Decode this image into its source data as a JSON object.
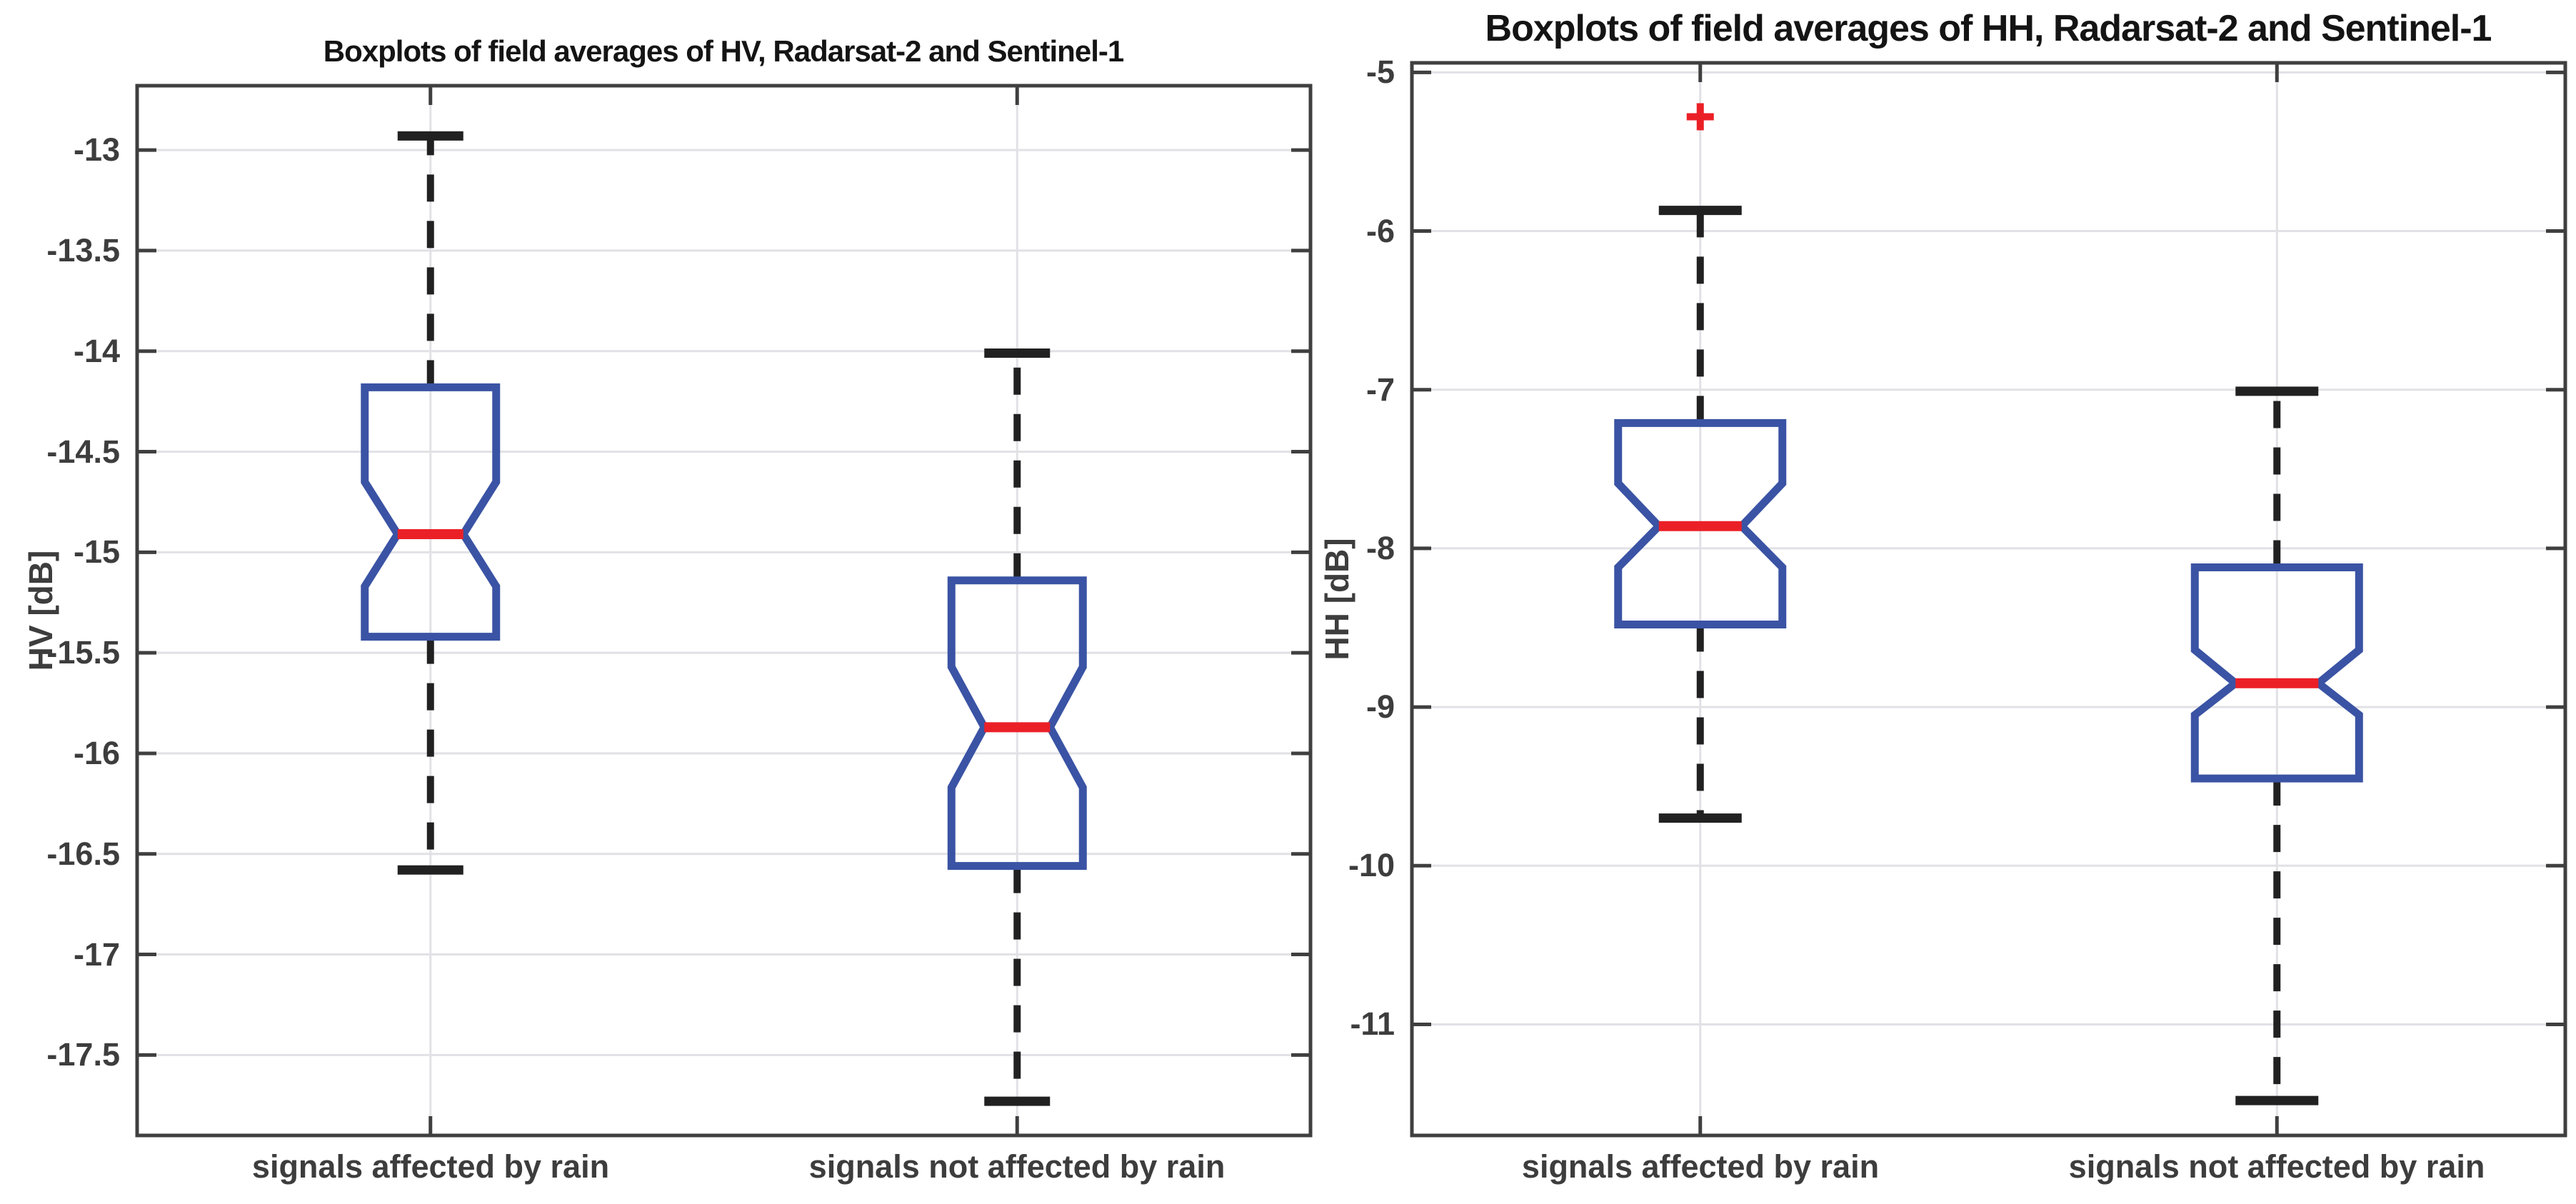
{
  "figure": {
    "background": "#FFFFFF"
  },
  "colors": {
    "box": "#3A53A4",
    "median": "#EB2027",
    "outlier": "#EB2027",
    "whisker": "#212121",
    "grid": "#E1E1E6",
    "axis": "#3F3F3F",
    "tick_text": "#3D3D3D",
    "title_text": "#141414"
  },
  "chart_data": [
    {
      "type": "boxplot",
      "title": "Boxplots of field averages of HV, Radarsat-2 and Sentinel-1",
      "ylabel": "HV [dB]",
      "xlabel": "",
      "categories": [
        "signals affected by rain",
        "signals not affected by rain"
      ],
      "ylim": [
        -17.9,
        -12.68
      ],
      "yticks": [
        -13,
        -13.5,
        -14,
        -14.5,
        -15,
        -15.5,
        -16,
        -16.5,
        -17,
        -17.5
      ],
      "grid": true,
      "notched": true,
      "legend": null,
      "boxes": [
        {
          "category": "signals affected by rain",
          "whisker_low": -16.58,
          "q1": -15.42,
          "median": -14.91,
          "q3": -14.18,
          "whisker_high": -12.93,
          "notch_low": -15.17,
          "notch_high": -14.65,
          "outliers": []
        },
        {
          "category": "signals not affected by rain",
          "whisker_low": -17.73,
          "q1": -16.56,
          "median": -15.87,
          "q3": -15.14,
          "whisker_high": -14.01,
          "notch_low": -16.17,
          "notch_high": -15.57,
          "outliers": []
        }
      ]
    },
    {
      "type": "boxplot",
      "title": "Boxplots of field averages of HH, Radarsat-2 and Sentinel-1",
      "ylabel": "HH [dB]",
      "xlabel": "",
      "categories": [
        "signals affected by rain",
        "signals not affected by rain"
      ],
      "ylim": [
        -11.7,
        -4.94
      ],
      "yticks": [
        -5,
        -6,
        -7,
        -8,
        -9,
        -10,
        -11
      ],
      "grid": true,
      "notched": true,
      "legend": null,
      "boxes": [
        {
          "category": "signals affected by rain",
          "whisker_low": -9.7,
          "q1": -8.48,
          "median": -7.86,
          "q3": -7.21,
          "whisker_high": -5.87,
          "notch_low": -8.12,
          "notch_high": -7.59,
          "outliers": [
            -5.28
          ]
        },
        {
          "category": "signals not affected by rain",
          "whisker_low": -11.48,
          "q1": -9.45,
          "median": -8.85,
          "q3": -8.12,
          "whisker_high": -7.01,
          "notch_low": -9.05,
          "notch_high": -8.64,
          "outliers": []
        }
      ]
    }
  ]
}
